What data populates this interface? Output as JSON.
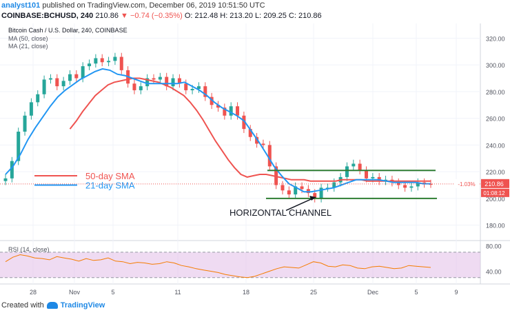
{
  "header": {
    "author": "analyst101",
    "published": "published on TradingView.com, December 06, 2019 10:51:50 UTC",
    "symbol": "COINBASE:BCHUSD, 240",
    "last": "210.86",
    "change": "▼ −0.74 (−0.35%)",
    "ohlc": "O: 212.48  H: 213.20  L: 209.25  C: 210.86"
  },
  "footer": {
    "created": "Created with",
    "brand": "TradingView"
  },
  "colors": {
    "up": "#26a69a",
    "down": "#ef5350",
    "ma50": "#ef5350",
    "ma21": "#2196f3",
    "channel": "#2e7d32",
    "rsi": "#f57c00",
    "rsi_band": "#e1bee7",
    "price_tag": "#ef5350"
  },
  "chart_data": {
    "type": "line",
    "title": "Bitcoin Cash / U.S. Dollar, 240, COINBASE",
    "legend": [
      "MA (50, close)",
      "MA (21, close)"
    ],
    "x_ticks": [
      "28",
      "Nov",
      "5",
      "11",
      "18",
      "25",
      "Dec",
      "5",
      "9"
    ],
    "ylim": [
      170,
      330
    ],
    "y_ticks": [
      180,
      200,
      220,
      240,
      260,
      280,
      300,
      320
    ],
    "price_close": [
      215,
      228,
      250,
      262,
      272,
      278,
      289,
      290,
      284,
      288,
      293,
      290,
      299,
      301,
      305,
      302,
      303,
      306,
      296,
      286,
      281,
      284,
      290,
      289,
      291,
      284,
      290,
      286,
      281,
      282,
      284,
      276,
      270,
      268,
      262,
      269,
      262,
      252,
      246,
      241,
      240,
      224,
      210,
      206,
      203,
      209,
      207,
      204,
      200,
      208,
      208,
      212,
      216,
      224,
      226,
      221,
      215,
      216,
      213,
      214,
      212,
      210,
      208,
      209,
      212,
      211,
      210.86
    ],
    "ma21": [
      218,
      224,
      233,
      244,
      253,
      261,
      269,
      276,
      281,
      285,
      289,
      292,
      295,
      297,
      296,
      293,
      292,
      290,
      288,
      286,
      286,
      286,
      286,
      286,
      287,
      284,
      281,
      277,
      272,
      268,
      265,
      262,
      258,
      250,
      242,
      233,
      224,
      217,
      211,
      208,
      205,
      205,
      206,
      207,
      208,
      210,
      212,
      214,
      214,
      214,
      214,
      213,
      212,
      212,
      212,
      212,
      211,
      211
    ],
    "ma50_x_start": 10,
    "ma50": [
      252,
      258,
      265,
      271,
      277,
      281,
      285,
      287,
      288,
      289,
      290,
      290,
      289,
      288,
      287,
      285,
      283,
      280,
      277,
      272,
      266,
      259,
      251,
      243,
      236,
      229,
      223,
      218,
      216,
      217,
      218,
      218,
      217,
      216,
      215,
      214,
      214,
      214,
      213,
      213,
      213,
      213,
      213,
      214,
      214,
      214,
      214,
      213,
      213,
      213,
      213,
      213,
      213,
      213,
      213,
      213,
      213,
      213
    ],
    "last_price_label": "210.86",
    "change_label": "-1.03%",
    "countdown_label": "01:08:12",
    "annotations": {
      "sma50": "50-day SMA",
      "sma21": "21-day SMA",
      "channel": "HORIZONTAL CHANNEL",
      "channel_top": 221,
      "channel_bottom": 200
    },
    "rsi": {
      "label": "RSI (14, close)",
      "ylim": [
        20,
        85
      ],
      "y_ticks": [
        40,
        80
      ],
      "band": [
        30,
        70
      ],
      "values": [
        55,
        62,
        66,
        64,
        61,
        60,
        58,
        63,
        61,
        59,
        56,
        60,
        57,
        58,
        61,
        56,
        55,
        52,
        54,
        53,
        51,
        52,
        55,
        53,
        49,
        47,
        44,
        42,
        40,
        38,
        35,
        33,
        31,
        30,
        32,
        36,
        40,
        44,
        47,
        46,
        45,
        50,
        55,
        53,
        48,
        47,
        50,
        49,
        45,
        44,
        47,
        48,
        46,
        44,
        45,
        49,
        48,
        47,
        46
      ]
    }
  }
}
